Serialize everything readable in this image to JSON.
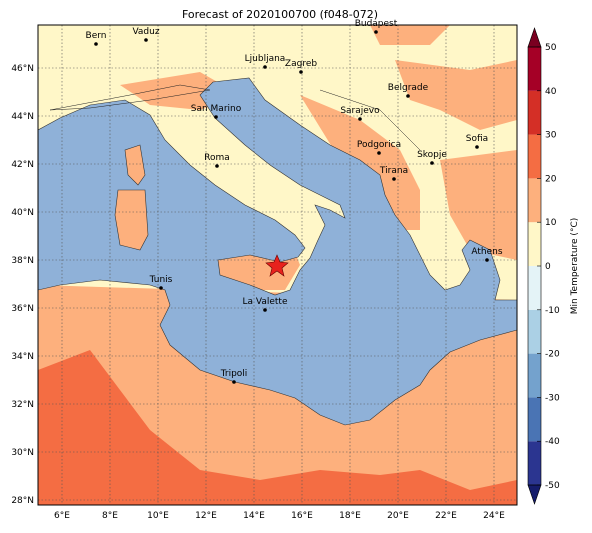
{
  "title": "Forecast of 2020100700 (f048-072)",
  "map": {
    "lon_ticks": [
      "6°E",
      "8°E",
      "10°E",
      "12°E",
      "14°E",
      "16°E",
      "18°E",
      "20°E",
      "22°E",
      "24°E"
    ],
    "lat_ticks": [
      "28°N",
      "30°N",
      "32°N",
      "34°N",
      "36°N",
      "38°N",
      "40°N",
      "42°N",
      "44°N",
      "46°N"
    ],
    "cities": [
      "Bern",
      "Vaduz",
      "Budapest",
      "Ljubljana",
      "Zagreb",
      "Belgrade",
      "Sarajevo",
      "San Marino",
      "Sofia",
      "Podgorica",
      "Skopje",
      "Roma",
      "Tirana",
      "Athens",
      "Tunis",
      "La Valette",
      "Tripoli"
    ]
  },
  "colorbar": {
    "label": "Min Temperature (°C)",
    "ticks": [
      -50,
      -40,
      -30,
      -20,
      -10,
      0,
      10,
      20,
      30,
      40,
      50
    ],
    "colors": [
      "#2b3590",
      "#4a74b4",
      "#74a2cd",
      "#abd0e5",
      "#e4f3f7",
      "#fff7c8",
      "#fdb07d",
      "#f46d43",
      "#d42f26",
      "#a50026"
    ]
  }
}
